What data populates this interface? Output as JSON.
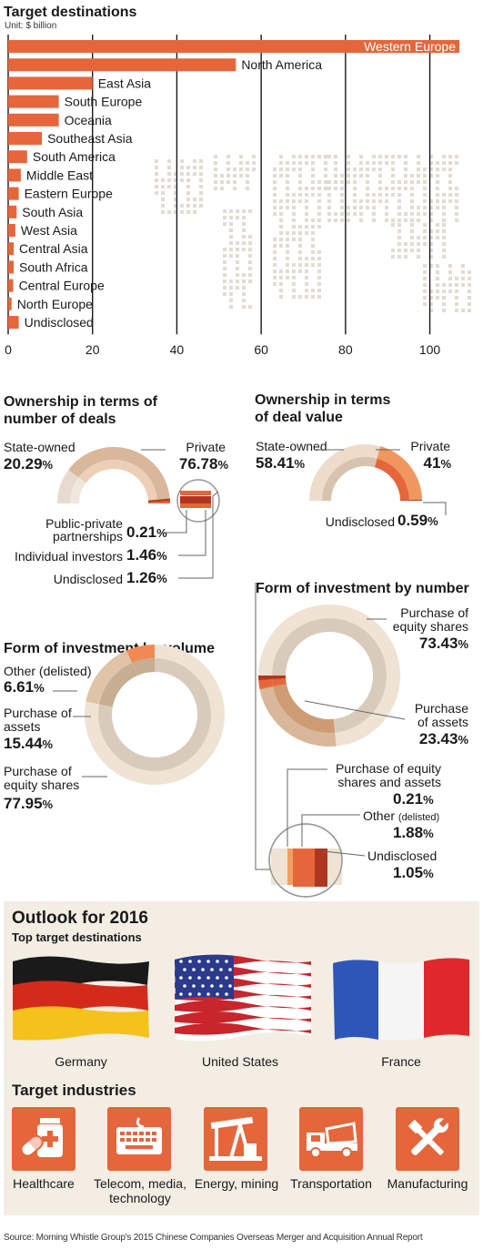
{
  "bar_section": {
    "title": "Target destinations",
    "unit": "Unit: $ billion"
  },
  "colors": {
    "bar": "#e5663b",
    "dark_orange": "#b0371f",
    "tan": "#d9b79a",
    "light_tan": "#ecdcc9",
    "taupe": "#cfc0ae",
    "outlook_bg": "#f3ede4",
    "map_dots": "#e3dbd1"
  },
  "ownership_deals": {
    "title_line1": "Ownership in terms of",
    "title_line2": "number of deals",
    "state_label": "State-owned",
    "state_value": "20.29",
    "state_unit": "%",
    "private_label": "Private",
    "private_value": "76.78",
    "private_unit": "%",
    "ppp_label_line1": "Public-private",
    "ppp_label_line2": "partnerships",
    "ppp_value": "0.21",
    "ppp_unit": "%",
    "indiv_label": "Individual investors",
    "indiv_value": "1.46",
    "indiv_unit": "%",
    "undisc_label": "Undisclosed",
    "undisc_value": "1.26",
    "undisc_unit": "%"
  },
  "ownership_value": {
    "title_line1": "Ownership in terms",
    "title_line2": "of deal value",
    "state_label": "State-owned",
    "state_value": "58.41",
    "state_unit": "%",
    "private_label": "Private",
    "private_value": "41",
    "private_unit": "%",
    "undisc_label": "Undisclosed",
    "undisc_value": "0.59",
    "undisc_unit": "%"
  },
  "form_volume": {
    "title": "Form of investment by volume",
    "other_label": "Other (delisted)",
    "other_value": "6.61",
    "other_unit": "%",
    "assets_label_line1": "Purchase of",
    "assets_label_line2": "assets",
    "assets_value": "15.44",
    "assets_unit": "%",
    "equity_label_line1": "Purchase of",
    "equity_label_line2": "equity shares",
    "equity_value": "77.95",
    "equity_unit": "%"
  },
  "form_number": {
    "title": "Form of investment by number",
    "equity_label_line1": "Purchase of",
    "equity_label_line2": "equity shares",
    "equity_value": "73.43",
    "equity_unit": "%",
    "assets_label_line1": "Purchase",
    "assets_label_line2": "of assets",
    "assets_value": "23.43",
    "assets_unit": "%",
    "both_label_line1": "Purchase of equity",
    "both_label_line2": "shares and assets",
    "both_value": "0.21",
    "both_unit": "%",
    "other_label": "Other",
    "other_label_small": "(delisted)",
    "other_value": "1.88",
    "other_unit": "%",
    "undisc_label": "Undisclosed",
    "undisc_value": "1.05",
    "undisc_unit": "%"
  },
  "outlook": {
    "title": "Outlook for 2016",
    "subtitle": "Top target destinations",
    "flags": [
      "Germany",
      "United States",
      "France"
    ],
    "industries_title": "Target industries",
    "industries": [
      {
        "name": "Healthcare",
        "icon": "medicine-icon"
      },
      {
        "name": "Telecom, media,",
        "name2": "technology",
        "icon": "keyboard-icon"
      },
      {
        "name": "Energy, mining",
        "icon": "oil-pump-icon"
      },
      {
        "name": "Transportation",
        "icon": "truck-icon"
      },
      {
        "name": "Manufacturing",
        "icon": "tools-icon"
      }
    ]
  },
  "source": "Source: Morning Whistle Group's 2015 Chinese Companies Overseas Merger and Acquisition Annual Report",
  "chart_data": [
    {
      "type": "bar",
      "orientation": "horizontal",
      "title": "Target destinations",
      "unit": "Unit: $ billion",
      "categories": [
        "Western Europe",
        "North America",
        "East Asia",
        "South Europe",
        "Oceania",
        "Southeast Asia",
        "South America",
        "Middle East",
        "Eastern Europe",
        "South Asia",
        "West Asia",
        "Central Asia",
        "South Africa",
        "Central Europe",
        "North Europe",
        "Undisclosed"
      ],
      "values": [
        107,
        54,
        20,
        12,
        12,
        8,
        4.5,
        3,
        2.5,
        2,
        1.7,
        1.3,
        1.3,
        1.2,
        0.8,
        2.5
      ],
      "xlim": [
        0,
        107
      ],
      "xticks": [
        0,
        20,
        40,
        60,
        80,
        100
      ],
      "grid": true
    },
    {
      "type": "pie",
      "title": "Ownership in terms of number of deals",
      "labels": [
        "State-owned",
        "Private",
        "Public-private partnerships",
        "Individual investors",
        "Undisclosed"
      ],
      "values": [
        20.29,
        76.78,
        0.21,
        1.46,
        1.26
      ]
    },
    {
      "type": "pie",
      "title": "Ownership in terms of deal value",
      "labels": [
        "State-owned",
        "Private",
        "Undisclosed"
      ],
      "values": [
        58.41,
        41,
        0.59
      ]
    },
    {
      "type": "pie",
      "title": "Form of investment by volume",
      "labels": [
        "Other (delisted)",
        "Purchase of assets",
        "Purchase of equity shares"
      ],
      "values": [
        6.61,
        15.44,
        77.95
      ]
    },
    {
      "type": "pie",
      "title": "Form of investment by number",
      "labels": [
        "Purchase of equity shares",
        "Purchase of assets",
        "Purchase of equity shares and assets",
        "Other (delisted)",
        "Undisclosed"
      ],
      "values": [
        73.43,
        23.43,
        0.21,
        1.88,
        1.05
      ]
    }
  ]
}
